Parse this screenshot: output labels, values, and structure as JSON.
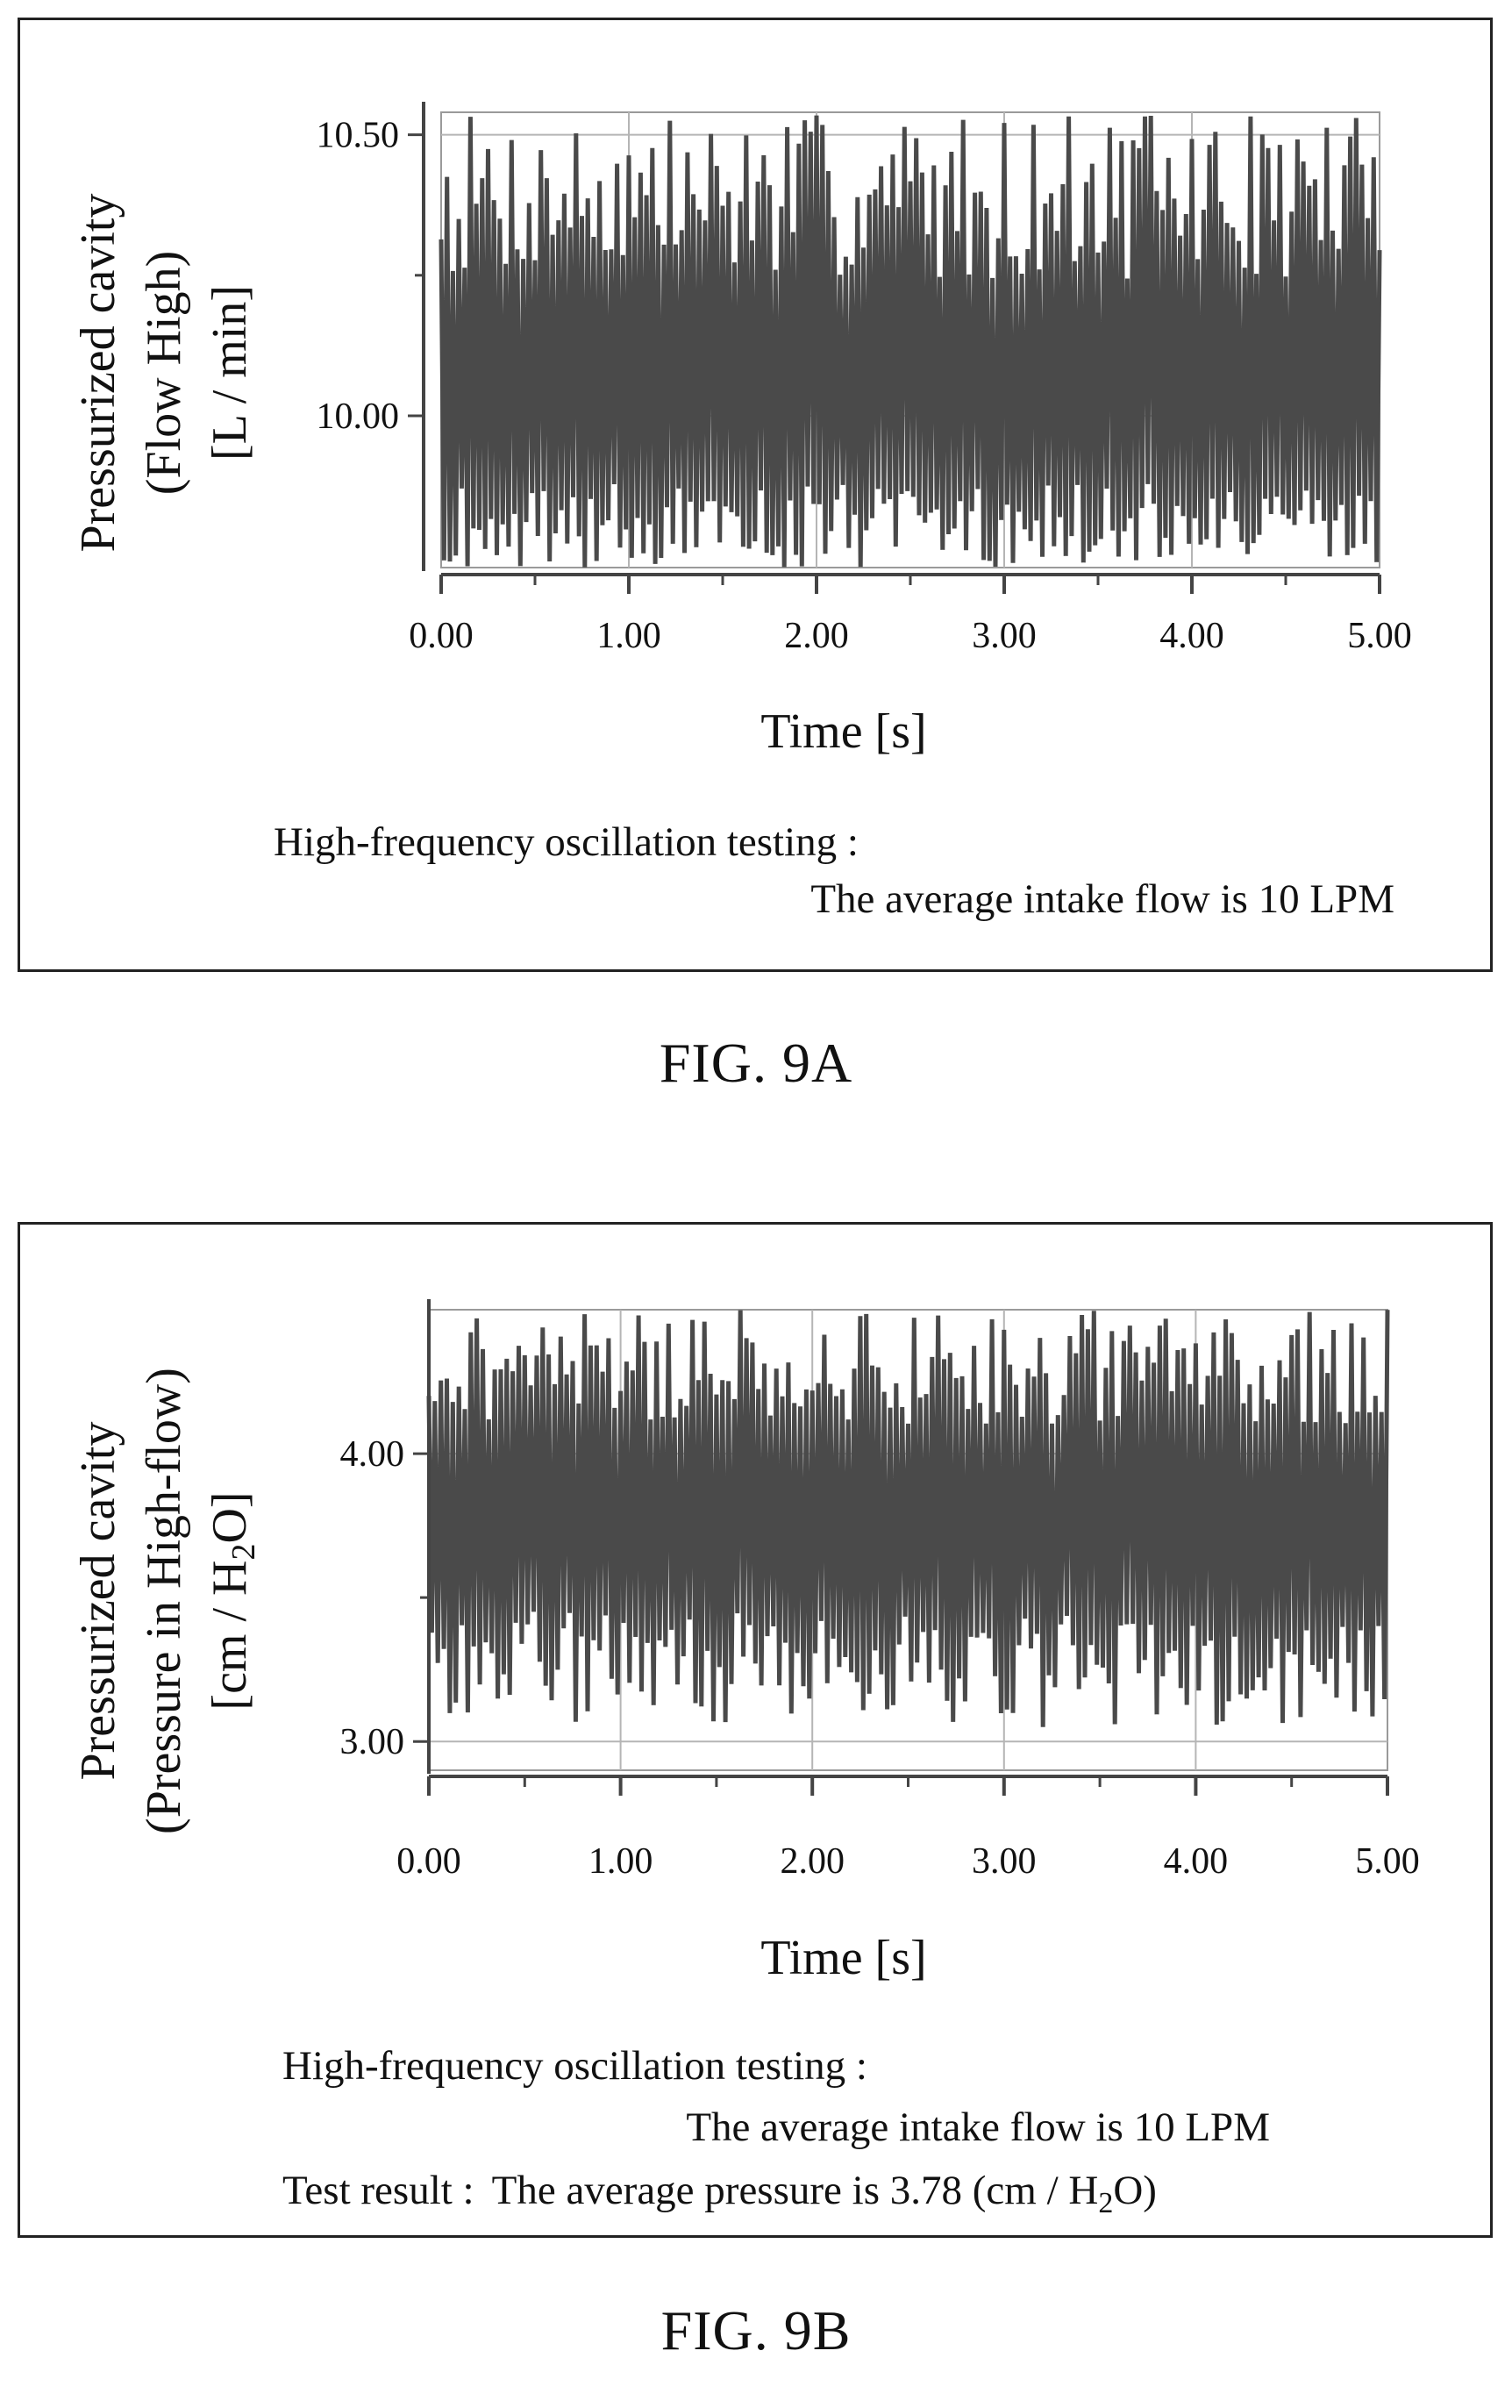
{
  "figures": [
    {
      "id": "a",
      "caption": "FIG. 9A",
      "notes": [
        "High-frequency oscillation testing :",
        "The average intake flow is 10 LPM"
      ],
      "ylabel_lines": [
        "Pressurized cavity",
        "(Flow High)",
        "[L / min]"
      ]
    },
    {
      "id": "b",
      "caption": "FIG. 9B",
      "notes": [
        "High-frequency oscillation testing :",
        "The average intake flow is 10 LPM"
      ],
      "result": {
        "label": "Test result :",
        "prefix": "The average pressure is 3.78 (cm / H",
        "sub": "2",
        "suffix": "O)"
      },
      "ylabel_lines": [
        "Pressurized cavity",
        "(Pressure in High-flow)"
      ],
      "ylabel_unit": {
        "prefix": "[cm / H",
        "sub": "2",
        "suffix": "O]"
      }
    }
  ],
  "chart_data": [
    {
      "type": "line",
      "xlabel": "Time [s]",
      "ylabel": "Pressurized cavity (Flow High) [L / min]",
      "x_ticks": [
        "0.00",
        "1.00",
        "2.00",
        "3.00",
        "4.00",
        "5.00"
      ],
      "y_ticks": [
        "10.50",
        "10.00"
      ],
      "xlim": [
        0,
        5
      ],
      "ylim": [
        9.73,
        10.54
      ],
      "grid": true,
      "signal": {
        "mean": 10.0,
        "min": 9.73,
        "max": 10.54,
        "samples": 320,
        "duration_s": 5.0
      }
    },
    {
      "type": "line",
      "xlabel": "Time [s]",
      "ylabel": "Pressurized cavity (Pressure in High-flow) [cm / H2O]",
      "x_ticks": [
        "0.00",
        "1.00",
        "2.00",
        "3.00",
        "4.00",
        "5.00"
      ],
      "y_ticks": [
        "4.00",
        "3.00"
      ],
      "xlim": [
        0,
        5
      ],
      "ylim": [
        2.9,
        4.5
      ],
      "grid": true,
      "signal": {
        "mean": 3.78,
        "min": 3.05,
        "max": 4.5,
        "samples": 320,
        "duration_s": 5.0
      }
    }
  ]
}
